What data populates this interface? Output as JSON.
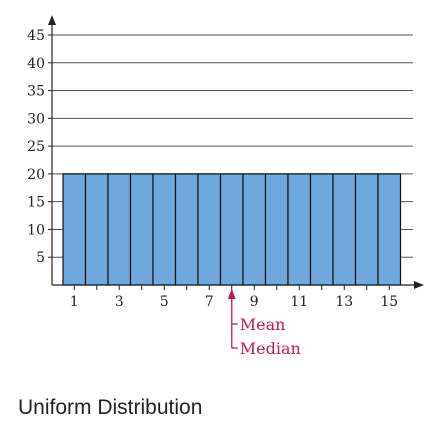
{
  "caption": "Uniform Distribution",
  "chart_data": {
    "type": "bar",
    "categories": [
      "1",
      "2",
      "3",
      "4",
      "5",
      "6",
      "7",
      "8",
      "9",
      "10",
      "11",
      "12",
      "13",
      "14",
      "15"
    ],
    "values": [
      20,
      20,
      20,
      20,
      20,
      20,
      20,
      20,
      20,
      20,
      20,
      20,
      20,
      20,
      20
    ],
    "ylim": [
      0,
      45
    ],
    "yticks": [
      5,
      10,
      15,
      20,
      25,
      30,
      35,
      40,
      45
    ],
    "xtick_labels": [
      "1",
      "3",
      "5",
      "7",
      "9",
      "11",
      "13",
      "15"
    ],
    "grid": true,
    "bar_color": "#6fa8dc",
    "marker": {
      "position": 8,
      "labels": [
        "Mean",
        "Median"
      ],
      "color": "#c2185b"
    }
  }
}
